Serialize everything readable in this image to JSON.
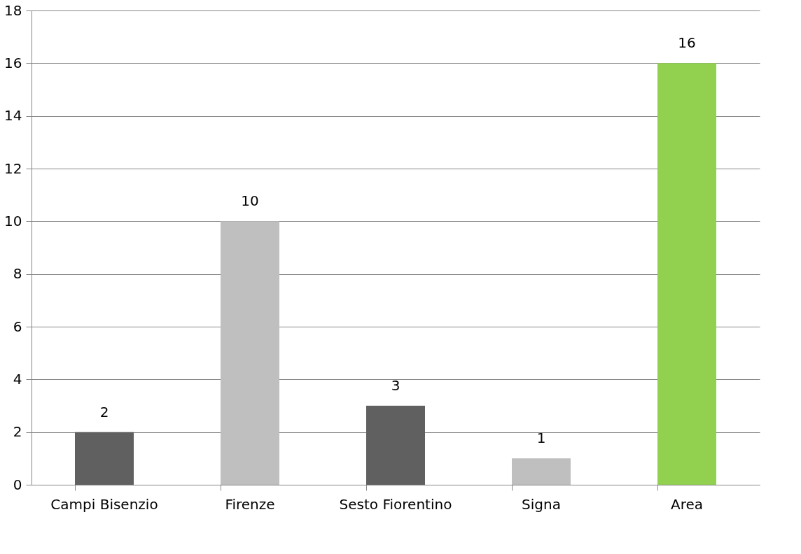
{
  "chart_data": {
    "type": "bar",
    "categories": [
      "Campi Bisenzio",
      "Firenze",
      "Sesto Fiorentino",
      "Signa",
      "Area"
    ],
    "values": [
      2,
      10,
      3,
      1,
      16
    ],
    "colors": [
      "#606060",
      "#bfbfbf",
      "#606060",
      "#bfbfbf",
      "#92d050"
    ],
    "ylim": [
      0,
      18
    ],
    "yticks": [
      0,
      2,
      4,
      6,
      8,
      10,
      12,
      14,
      16,
      18
    ],
    "grid": "y",
    "data_labels": true
  }
}
